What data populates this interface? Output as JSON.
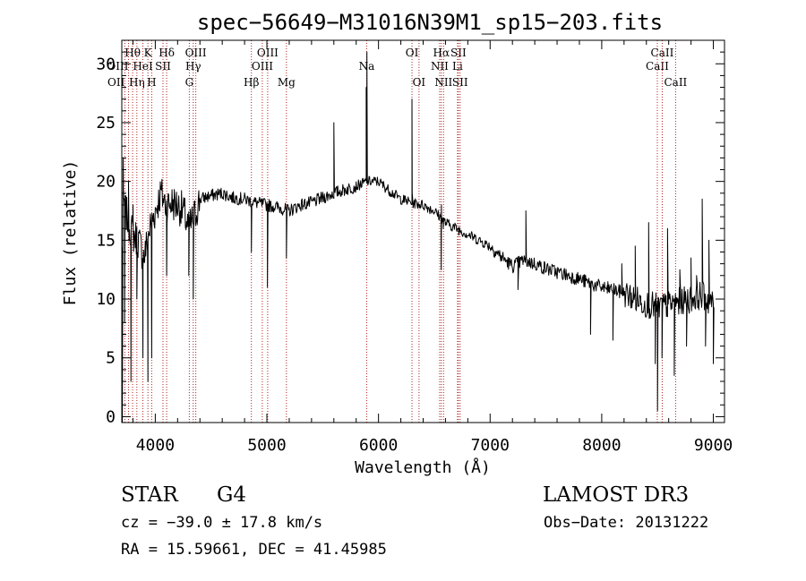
{
  "chart_data": {
    "type": "line",
    "title": "spec−56649−M31016N39M1_sp15−203.fits",
    "xlabel": "Wavelength (Å)",
    "ylabel": "Flux (relative)",
    "xlim": [
      3700,
      9100
    ],
    "ylim": [
      -0.5,
      32
    ],
    "x_ticks": [
      4000,
      5000,
      6000,
      7000,
      8000,
      9000
    ],
    "y_ticks": [
      0,
      5,
      10,
      15,
      20,
      25,
      30
    ],
    "line_color": "#000000",
    "line_marker_color": "#b22222",
    "continuum": [
      [
        3700,
        14
      ],
      [
        3720,
        18
      ],
      [
        3760,
        16.5
      ],
      [
        3800,
        15.5
      ],
      [
        3850,
        15
      ],
      [
        3900,
        13.5
      ],
      [
        3950,
        16
      ],
      [
        4000,
        17.5
      ],
      [
        4050,
        19
      ],
      [
        4100,
        18
      ],
      [
        4150,
        18.2
      ],
      [
        4200,
        18
      ],
      [
        4250,
        17.5
      ],
      [
        4300,
        16
      ],
      [
        4350,
        17
      ],
      [
        4400,
        18.5
      ],
      [
        4500,
        18.8
      ],
      [
        4600,
        19
      ],
      [
        4700,
        18.6
      ],
      [
        4800,
        18.5
      ],
      [
        4900,
        18.2
      ],
      [
        5000,
        18
      ],
      [
        5100,
        17.8
      ],
      [
        5200,
        17.5
      ],
      [
        5300,
        18
      ],
      [
        5400,
        18.2
      ],
      [
        5500,
        18.6
      ],
      [
        5600,
        19
      ],
      [
        5700,
        19.3
      ],
      [
        5800,
        19.6
      ],
      [
        5900,
        20
      ],
      [
        6000,
        20
      ],
      [
        6100,
        19.2
      ],
      [
        6200,
        18.5
      ],
      [
        6300,
        18.2
      ],
      [
        6400,
        18
      ],
      [
        6500,
        17.5
      ],
      [
        6600,
        16.5
      ],
      [
        6700,
        16
      ],
      [
        6800,
        15.5
      ],
      [
        6900,
        15
      ],
      [
        7000,
        14.5
      ],
      [
        7100,
        13.6
      ],
      [
        7200,
        12.8
      ],
      [
        7300,
        13.3
      ],
      [
        7400,
        13
      ],
      [
        7500,
        12.6
      ],
      [
        7600,
        12.3
      ],
      [
        7700,
        12
      ],
      [
        7800,
        11.7
      ],
      [
        7900,
        11.3
      ],
      [
        8000,
        11
      ],
      [
        8100,
        10.8
      ],
      [
        8200,
        10.5
      ],
      [
        8300,
        10
      ],
      [
        8400,
        9.6
      ],
      [
        8500,
        9.3
      ],
      [
        8600,
        9.5
      ],
      [
        8700,
        9.8
      ],
      [
        8800,
        10
      ],
      [
        8900,
        10.4
      ],
      [
        9000,
        9.5
      ]
    ],
    "features": [
      [
        3705,
        -0.5
      ],
      [
        3712,
        22
      ],
      [
        3725,
        8
      ],
      [
        3760,
        20
      ],
      [
        3782,
        3
      ],
      [
        3800,
        18
      ],
      [
        3835,
        10
      ],
      [
        3889,
        5
      ],
      [
        3934,
        3
      ],
      [
        3968,
        5
      ],
      [
        4102,
        12
      ],
      [
        4300,
        12
      ],
      [
        4340,
        10
      ],
      [
        4861,
        14
      ],
      [
        5005,
        11
      ],
      [
        5175,
        13.5
      ],
      [
        5600,
        25
      ],
      [
        5890,
        28
      ],
      [
        5893,
        20
      ],
      [
        5896,
        31
      ],
      [
        6300,
        27
      ],
      [
        6302,
        19
      ],
      [
        6562,
        12.5
      ],
      [
        6564,
        18
      ],
      [
        6580,
        16
      ],
      [
        7250,
        10.8
      ],
      [
        7295,
        13.2
      ],
      [
        7320,
        17.5
      ],
      [
        7900,
        7
      ],
      [
        8050,
        10.5
      ],
      [
        8100,
        6.5
      ],
      [
        8180,
        13
      ],
      [
        8300,
        14.5
      ],
      [
        8350,
        9.5
      ],
      [
        8420,
        16.5
      ],
      [
        8480,
        4.5
      ],
      [
        8500,
        0.5
      ],
      [
        8540,
        5
      ],
      [
        8590,
        16
      ],
      [
        8650,
        3.5
      ],
      [
        8700,
        12.5
      ],
      [
        8760,
        6
      ],
      [
        8800,
        13.5
      ],
      [
        8850,
        12
      ],
      [
        8900,
        18.5
      ],
      [
        8930,
        6
      ],
      [
        8960,
        15
      ],
      [
        9000,
        4.5
      ]
    ],
    "lines": [
      {
        "label": "OII",
        "x": 3727,
        "row": 3,
        "anchor": "end"
      },
      {
        "label": "Hθ",
        "x": 3797,
        "row": 1,
        "anchor": "middle"
      },
      {
        "label": "OIII",
        "x": 3760,
        "row": 2,
        "anchor": "end"
      },
      {
        "label": "Hη",
        "x": 3835,
        "row": 3,
        "anchor": "middle"
      },
      {
        "label": "HeI",
        "x": 3889,
        "row": 2,
        "anchor": "middle"
      },
      {
        "label": "K",
        "x": 3934,
        "row": 1,
        "anchor": "middle"
      },
      {
        "label": "H",
        "x": 3968,
        "row": 3,
        "anchor": "middle"
      },
      {
        "label": "SII",
        "x": 4069,
        "row": 2,
        "anchor": "middle"
      },
      {
        "label": "Hδ",
        "x": 4102,
        "row": 1,
        "anchor": "middle"
      },
      {
        "label": "G",
        "x": 4305,
        "row": 3,
        "anchor": "middle"
      },
      {
        "label": "Hγ",
        "x": 4340,
        "row": 2,
        "anchor": "middle"
      },
      {
        "label": "OIII",
        "x": 4363,
        "row": 1,
        "anchor": "middle"
      },
      {
        "label": "Hβ",
        "x": 4861,
        "row": 3,
        "anchor": "middle"
      },
      {
        "label": "OIII",
        "x": 4959,
        "row": 2,
        "anchor": "middle"
      },
      {
        "label": "OIII",
        "x": 5007,
        "row": 1,
        "anchor": "middle"
      },
      {
        "label": "Mg",
        "x": 5175,
        "row": 3,
        "anchor": "middle"
      },
      {
        "label": "Na",
        "x": 5894,
        "row": 2,
        "anchor": "middle"
      },
      {
        "label": "OI",
        "x": 6300,
        "row": 1,
        "anchor": "middle"
      },
      {
        "label": "OI",
        "x": 6363,
        "row": 3,
        "anchor": "middle"
      },
      {
        "label": "NII",
        "x": 6548,
        "row": 2,
        "anchor": "middle"
      },
      {
        "label": "Hα",
        "x": 6563,
        "row": 1,
        "anchor": "middle"
      },
      {
        "label": "NII",
        "x": 6583,
        "row": 3,
        "anchor": "middle"
      },
      {
        "label": "Li",
        "x": 6708,
        "row": 2,
        "anchor": "middle"
      },
      {
        "label": "SII",
        "x": 6716,
        "row": 1,
        "anchor": "middle"
      },
      {
        "label": "SII",
        "x": 6731,
        "row": 3,
        "anchor": "middle"
      },
      {
        "label": "CaII",
        "x": 8498,
        "row": 2,
        "anchor": "middle"
      },
      {
        "label": "CaII",
        "x": 8542,
        "row": 1,
        "anchor": "middle"
      },
      {
        "label": "CaII",
        "x": 8662,
        "row": 3,
        "anchor": "middle"
      }
    ]
  },
  "info": {
    "class": "STAR",
    "subclass": "G4",
    "survey": "LAMOST DR3",
    "cz": "cz = −39.0 ± 17.8 km/s",
    "obs_date": "Obs−Date: 20131222",
    "radec": "RA =  15.59661, DEC =  41.45985"
  }
}
